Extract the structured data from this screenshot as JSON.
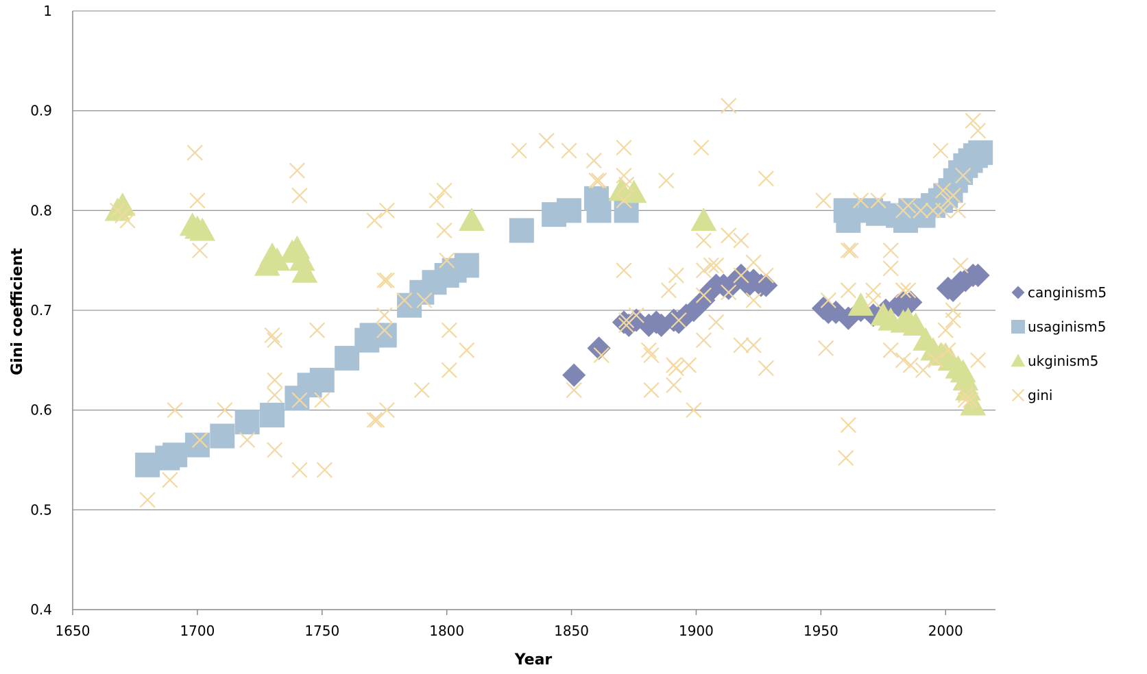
{
  "chart_data": {
    "type": "scatter",
    "xlabel": "Year",
    "ylabel": "Gini coefficient",
    "xlim": [
      1650,
      2020
    ],
    "ylim": [
      0.4,
      1
    ],
    "x_ticks": [
      "1650",
      "1700",
      "1750",
      "1800",
      "1850",
      "1900",
      "1950",
      "2000"
    ],
    "y_ticks": [
      "0.4",
      "0.5",
      "0.6",
      "0.7",
      "0.8",
      "0.9",
      "1"
    ],
    "grid": "horizontal",
    "legend_position": "right",
    "series": [
      {
        "name": "canginism5",
        "marker": "diamond",
        "color": "#7F86B3",
        "points": [
          [
            1851,
            0.635
          ],
          [
            1861,
            0.662
          ],
          [
            1871,
            0.688
          ],
          [
            1873,
            0.685
          ],
          [
            1876,
            0.69
          ],
          [
            1881,
            0.685
          ],
          [
            1884,
            0.688
          ],
          [
            1886,
            0.685
          ],
          [
            1891,
            0.69
          ],
          [
            1893,
            0.688
          ],
          [
            1896,
            0.695
          ],
          [
            1899,
            0.7
          ],
          [
            1901,
            0.705
          ],
          [
            1903,
            0.71
          ],
          [
            1906,
            0.72
          ],
          [
            1908,
            0.725
          ],
          [
            1911,
            0.725
          ],
          [
            1913,
            0.722
          ],
          [
            1916,
            0.73
          ],
          [
            1918,
            0.735
          ],
          [
            1921,
            0.725
          ],
          [
            1923,
            0.73
          ],
          [
            1926,
            0.725
          ],
          [
            1928,
            0.725
          ],
          [
            1951,
            0.702
          ],
          [
            1953,
            0.698
          ],
          [
            1956,
            0.698
          ],
          [
            1961,
            0.692
          ],
          [
            1966,
            0.7
          ],
          [
            1971,
            0.695
          ],
          [
            1976,
            0.7
          ],
          [
            1981,
            0.705
          ],
          [
            1983,
            0.708
          ],
          [
            1986,
            0.708
          ],
          [
            2001,
            0.722
          ],
          [
            2003,
            0.72
          ],
          [
            2006,
            0.728
          ],
          [
            2008,
            0.73
          ],
          [
            2011,
            0.735
          ],
          [
            2013,
            0.735
          ]
        ]
      },
      {
        "name": "usaginism5",
        "marker": "square",
        "color": "#A9C1D5",
        "points": [
          [
            1680,
            0.545
          ],
          [
            1688,
            0.552
          ],
          [
            1691,
            0.555
          ],
          [
            1700,
            0.565
          ],
          [
            1710,
            0.574
          ],
          [
            1720,
            0.588
          ],
          [
            1730,
            0.595
          ],
          [
            1740,
            0.612
          ],
          [
            1745,
            0.625
          ],
          [
            1750,
            0.63
          ],
          [
            1760,
            0.652
          ],
          [
            1768,
            0.67
          ],
          [
            1770,
            0.675
          ],
          [
            1775,
            0.675
          ],
          [
            1785,
            0.705
          ],
          [
            1790,
            0.718
          ],
          [
            1795,
            0.728
          ],
          [
            1800,
            0.735
          ],
          [
            1803,
            0.74
          ],
          [
            1808,
            0.745
          ],
          [
            1830,
            0.78
          ],
          [
            1843,
            0.796
          ],
          [
            1849,
            0.8
          ],
          [
            1860,
            0.812
          ],
          [
            1861,
            0.8
          ],
          [
            1872,
            0.8
          ],
          [
            1960,
            0.8
          ],
          [
            1961,
            0.79
          ],
          [
            1970,
            0.8
          ],
          [
            1973,
            0.797
          ],
          [
            1981,
            0.795
          ],
          [
            1984,
            0.79
          ],
          [
            1986,
            0.8
          ],
          [
            1991,
            0.795
          ],
          [
            1995,
            0.805
          ],
          [
            1998,
            0.81
          ],
          [
            2000,
            0.815
          ],
          [
            2002,
            0.82
          ],
          [
            2004,
            0.83
          ],
          [
            2006,
            0.838
          ],
          [
            2008,
            0.845
          ],
          [
            2010,
            0.85
          ],
          [
            2012,
            0.855
          ],
          [
            2014,
            0.858
          ]
        ]
      },
      {
        "name": "ukginism5",
        "marker": "triangle",
        "color": "#D7E094",
        "points": [
          [
            1668,
            0.8
          ],
          [
            1670,
            0.805
          ],
          [
            1698,
            0.785
          ],
          [
            1700,
            0.782
          ],
          [
            1702,
            0.78
          ],
          [
            1728,
            0.745
          ],
          [
            1730,
            0.755
          ],
          [
            1732,
            0.75
          ],
          [
            1738,
            0.758
          ],
          [
            1740,
            0.762
          ],
          [
            1742,
            0.75
          ],
          [
            1743,
            0.738
          ],
          [
            1810,
            0.79
          ],
          [
            1870,
            0.82
          ],
          [
            1875,
            0.818
          ],
          [
            1903,
            0.79
          ],
          [
            1966,
            0.705
          ],
          [
            1975,
            0.695
          ],
          [
            1978,
            0.69
          ],
          [
            1983,
            0.688
          ],
          [
            1985,
            0.69
          ],
          [
            1988,
            0.685
          ],
          [
            1992,
            0.67
          ],
          [
            1995,
            0.66
          ],
          [
            1998,
            0.655
          ],
          [
            2000,
            0.655
          ],
          [
            2002,
            0.65
          ],
          [
            2005,
            0.642
          ],
          [
            2007,
            0.638
          ],
          [
            2008,
            0.63
          ],
          [
            2009,
            0.62
          ],
          [
            2011,
            0.605
          ]
        ]
      },
      {
        "name": "gini",
        "marker": "x",
        "color": "#F3D9A1",
        "points": [
          [
            1668,
            0.8
          ],
          [
            1670,
            0.795
          ],
          [
            1672,
            0.79
          ],
          [
            1680,
            0.51
          ],
          [
            1689,
            0.53
          ],
          [
            1691,
            0.6
          ],
          [
            1699,
            0.858
          ],
          [
            1700,
            0.81
          ],
          [
            1701,
            0.76
          ],
          [
            1701,
            0.57
          ],
          [
            1711,
            0.6
          ],
          [
            1720,
            0.57
          ],
          [
            1730,
            0.675
          ],
          [
            1731,
            0.67
          ],
          [
            1731,
            0.63
          ],
          [
            1731,
            0.615
          ],
          [
            1731,
            0.56
          ],
          [
            1740,
            0.84
          ],
          [
            1741,
            0.815
          ],
          [
            1741,
            0.61
          ],
          [
            1741,
            0.54
          ],
          [
            1748,
            0.68
          ],
          [
            1750,
            0.61
          ],
          [
            1751,
            0.54
          ],
          [
            1771,
            0.79
          ],
          [
            1771,
            0.59
          ],
          [
            1772,
            0.59
          ],
          [
            1775,
            0.73
          ],
          [
            1776,
            0.73
          ],
          [
            1775,
            0.695
          ],
          [
            1775,
            0.68
          ],
          [
            1776,
            0.6
          ],
          [
            1776,
            0.8
          ],
          [
            1783,
            0.71
          ],
          [
            1790,
            0.62
          ],
          [
            1791,
            0.71
          ],
          [
            1796,
            0.81
          ],
          [
            1799,
            0.82
          ],
          [
            1799,
            0.78
          ],
          [
            1800,
            0.75
          ],
          [
            1801,
            0.68
          ],
          [
            1801,
            0.64
          ],
          [
            1808,
            0.66
          ],
          [
            1829,
            0.86
          ],
          [
            1840,
            0.87
          ],
          [
            1849,
            0.86
          ],
          [
            1859,
            0.85
          ],
          [
            1860,
            0.83
          ],
          [
            1861,
            0.83
          ],
          [
            1862,
            0.655
          ],
          [
            1851,
            0.62
          ],
          [
            1871,
            0.863
          ],
          [
            1871,
            0.835
          ],
          [
            1872,
            0.826
          ],
          [
            1871,
            0.81
          ],
          [
            1871,
            0.74
          ],
          [
            1872,
            0.69
          ],
          [
            1872,
            0.685
          ],
          [
            1876,
            0.695
          ],
          [
            1881,
            0.66
          ],
          [
            1882,
            0.655
          ],
          [
            1882,
            0.62
          ],
          [
            1888,
            0.83
          ],
          [
            1889,
            0.72
          ],
          [
            1892,
            0.735
          ],
          [
            1893,
            0.69
          ],
          [
            1891,
            0.645
          ],
          [
            1892,
            0.642
          ],
          [
            1891,
            0.625
          ],
          [
            1897,
            0.645
          ],
          [
            1899,
            0.6
          ],
          [
            1902,
            0.863
          ],
          [
            1903,
            0.77
          ],
          [
            1903,
            0.74
          ],
          [
            1903,
            0.715
          ],
          [
            1903,
            0.67
          ],
          [
            1906,
            0.745
          ],
          [
            1908,
            0.745
          ],
          [
            1908,
            0.688
          ],
          [
            1913,
            0.905
          ],
          [
            1913,
            0.775
          ],
          [
            1913,
            0.718
          ],
          [
            1918,
            0.77
          ],
          [
            1918,
            0.735
          ],
          [
            1918,
            0.665
          ],
          [
            1923,
            0.748
          ],
          [
            1923,
            0.71
          ],
          [
            1923,
            0.665
          ],
          [
            1928,
            0.832
          ],
          [
            1928,
            0.735
          ],
          [
            1928,
            0.642
          ],
          [
            1951,
            0.81
          ],
          [
            1953,
            0.71
          ],
          [
            1952,
            0.662
          ],
          [
            1961,
            0.76
          ],
          [
            1962,
            0.76
          ],
          [
            1961,
            0.72
          ],
          [
            1961,
            0.585
          ],
          [
            1960,
            0.552
          ],
          [
            1966,
            0.81
          ],
          [
            1971,
            0.72
          ],
          [
            1971,
            0.71
          ],
          [
            1973,
            0.81
          ],
          [
            1978,
            0.76
          ],
          [
            1978,
            0.742
          ],
          [
            1978,
            0.66
          ],
          [
            1983,
            0.8
          ],
          [
            1983,
            0.72
          ],
          [
            1983,
            0.65
          ],
          [
            1985,
            0.805
          ],
          [
            1985,
            0.72
          ],
          [
            1986,
            0.645
          ],
          [
            1990,
            0.8
          ],
          [
            1991,
            0.64
          ],
          [
            1995,
            0.8
          ],
          [
            1996,
            0.65
          ],
          [
            1998,
            0.86
          ],
          [
            1999,
            0.82
          ],
          [
            1999,
            0.8
          ],
          [
            2000,
            0.68
          ],
          [
            2001,
            0.81
          ],
          [
            2003,
            0.815
          ],
          [
            2003,
            0.7
          ],
          [
            2003,
            0.69
          ],
          [
            2005,
            0.8
          ],
          [
            2006,
            0.745
          ],
          [
            2007,
            0.835
          ],
          [
            2008,
            0.61
          ],
          [
            2008,
            0.615
          ],
          [
            2010,
            0.61
          ],
          [
            2011,
            0.89
          ],
          [
            2013,
            0.88
          ],
          [
            2013,
            0.65
          ],
          [
            2001,
            0.66
          ]
        ]
      }
    ]
  }
}
